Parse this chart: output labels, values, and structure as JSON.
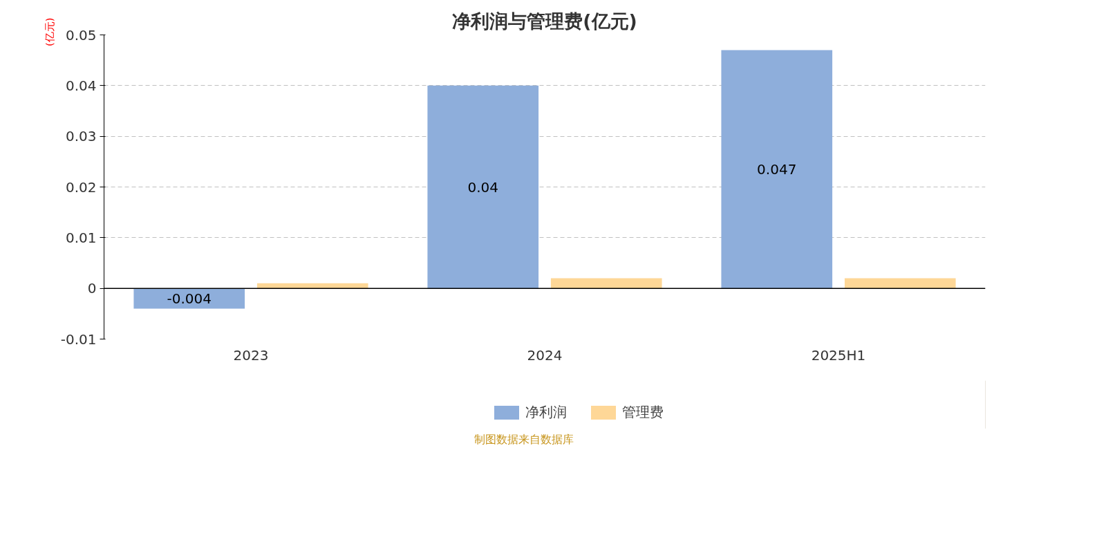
{
  "chart_data": {
    "type": "bar",
    "title": "净利润与管理费(亿元)",
    "ylabel": "(亿元)",
    "categories": [
      "2023",
      "2024",
      "2025H1"
    ],
    "series": [
      {
        "name": "净利润",
        "color": "#8eaedb",
        "values": [
          -0.004,
          0.04,
          0.047
        ],
        "value_labels": [
          "-0.004",
          "0.04",
          "0.047"
        ]
      },
      {
        "name": "管理费",
        "color": "#fed797",
        "values": [
          0.001,
          0.002,
          0.002
        ]
      }
    ],
    "ylim": [
      -0.01,
      0.05
    ],
    "yticks": [
      -0.01,
      0,
      0.01,
      0.02,
      0.03,
      0.04,
      0.05
    ],
    "ref_lines": [
      {
        "axis": "y",
        "value": 0,
        "color": "#000000"
      }
    ],
    "grid": "y",
    "legend": "bottom",
    "annotations": [
      "制图数据来自数据库"
    ]
  }
}
